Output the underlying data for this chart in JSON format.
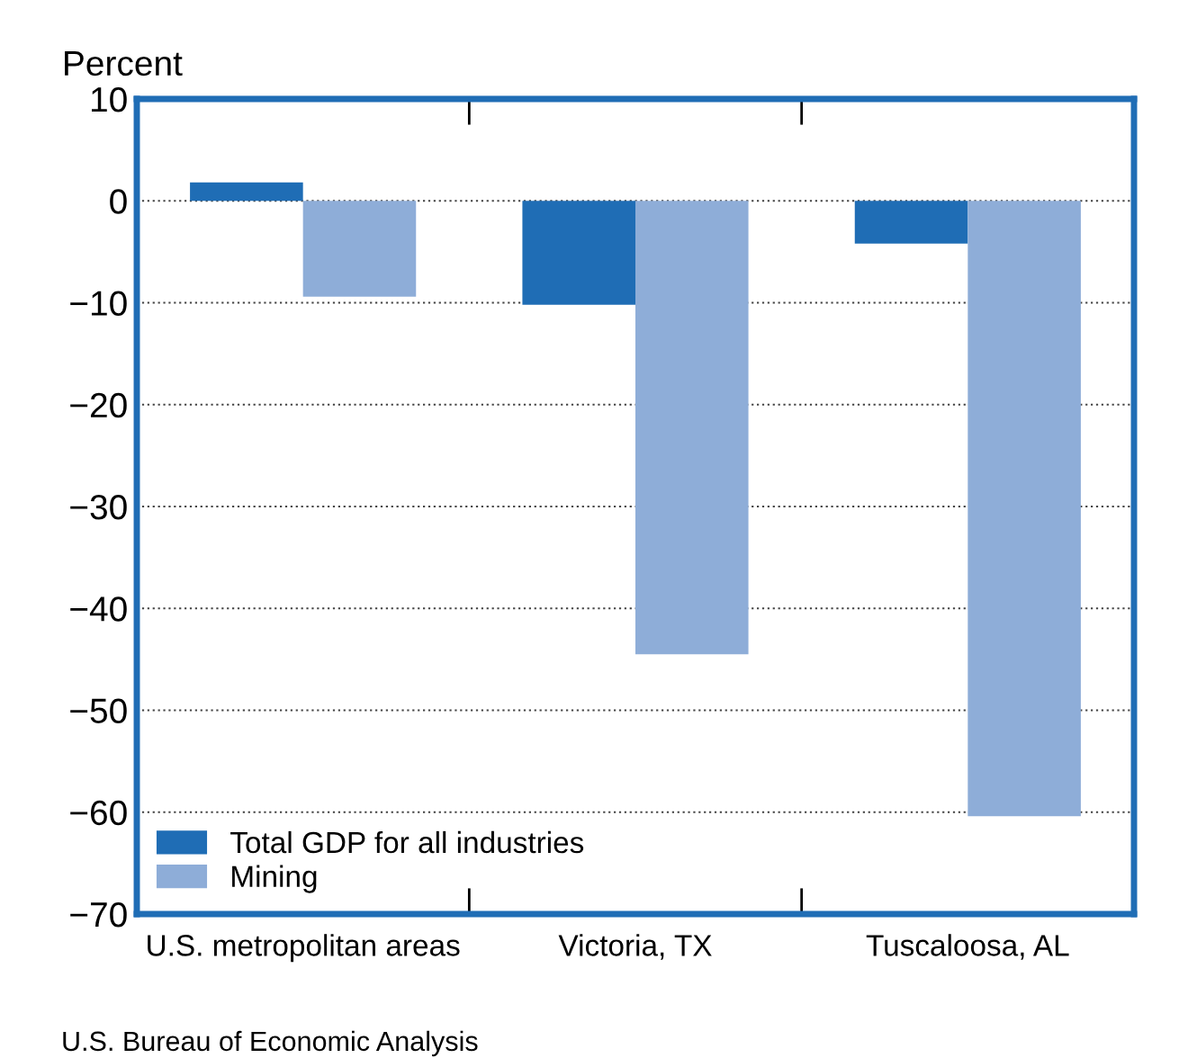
{
  "chart_data": {
    "type": "bar",
    "ylabel": "Percent",
    "categories": [
      "U.S. metropolitan areas",
      "Victoria, TX",
      "Tuscaloosa, AL"
    ],
    "series": [
      {
        "name": "Total GDP for all industries",
        "color": "#1f6db5",
        "values": [
          1.8,
          -10.2,
          -4.2
        ]
      },
      {
        "name": "Mining",
        "color": "#8eadd8",
        "values": [
          -9.4,
          -44.5,
          -60.4
        ]
      }
    ],
    "ylim": [
      -70,
      10
    ],
    "yticks": [
      10,
      0,
      {
        "value": -10,
        "label": "−10"
      },
      {
        "value": -20,
        "label": "−20"
      },
      {
        "value": -30,
        "label": "−30"
      },
      {
        "value": -40,
        "label": "−40"
      },
      {
        "value": -50,
        "label": "−50"
      },
      {
        "value": -60,
        "label": "−60"
      },
      {
        "value": -70,
        "label": "−70"
      }
    ],
    "grid": "y",
    "legend": "bottom left",
    "annotations": [
      "U.S. Bureau of Economic Analysis"
    ]
  }
}
